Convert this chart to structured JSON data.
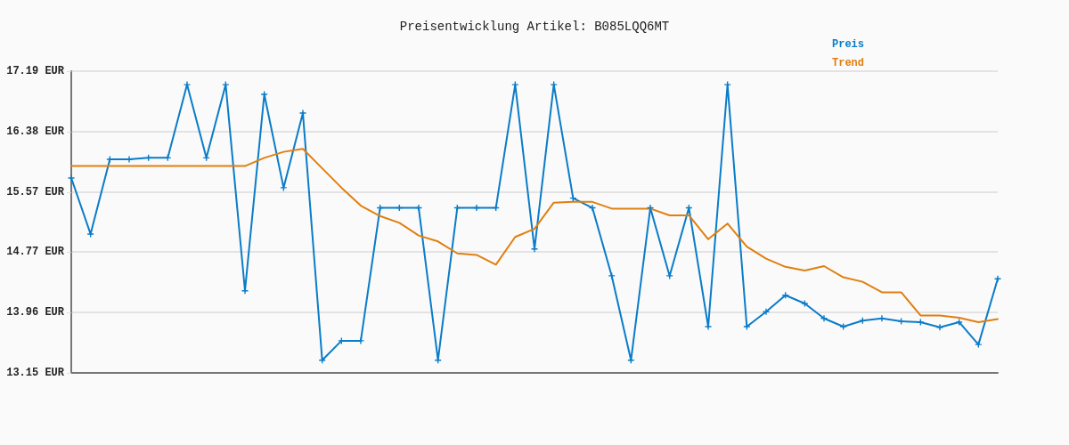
{
  "chart_data": {
    "type": "line",
    "title": "Preisentwicklung Artikel: B085LQQ6MT",
    "categories": [
      null,
      null,
      null,
      null,
      null,
      null,
      null,
      null,
      null,
      null,
      null,
      null,
      null,
      null,
      null,
      null,
      null,
      null,
      null,
      null,
      null,
      null,
      null,
      null,
      null,
      null,
      null,
      null,
      null,
      null,
      null,
      null,
      null,
      null,
      null,
      null,
      null,
      null,
      null,
      null,
      null,
      null,
      null,
      null,
      null,
      null,
      null,
      null,
      null
    ],
    "series": [
      {
        "name": "Preis",
        "color": "#0a7cc8",
        "marker": "cross",
        "values": [
          15.76,
          15.01,
          16.01,
          16.01,
          16.03,
          16.03,
          17.01,
          16.03,
          17.01,
          14.25,
          16.88,
          15.63,
          16.63,
          13.32,
          13.58,
          13.58,
          15.36,
          15.36,
          15.36,
          13.32,
          15.36,
          15.36,
          15.36,
          17.01,
          14.81,
          17.01,
          15.49,
          15.36,
          14.45,
          13.32,
          15.36,
          14.45,
          15.36,
          13.77,
          17.01,
          13.77,
          13.97,
          14.19,
          14.08,
          13.88,
          13.77,
          13.85,
          13.88,
          13.84,
          13.83,
          13.76,
          13.83,
          13.53,
          14.41
        ]
      },
      {
        "name": "Trend",
        "color": "#e07f10",
        "marker": "none",
        "values": [
          15.92,
          15.92,
          15.92,
          15.92,
          15.92,
          15.92,
          15.92,
          15.92,
          15.92,
          15.92,
          16.03,
          16.11,
          16.15,
          15.89,
          15.63,
          15.39,
          15.25,
          15.16,
          14.99,
          14.91,
          14.75,
          14.73,
          14.6,
          14.97,
          15.08,
          15.43,
          15.44,
          15.44,
          15.35,
          15.35,
          15.35,
          15.26,
          15.26,
          14.94,
          15.15,
          14.84,
          14.68,
          14.57,
          14.52,
          14.58,
          14.43,
          14.37,
          14.23,
          14.23,
          13.92,
          13.92,
          13.89,
          13.83,
          13.87
        ]
      }
    ],
    "ylim": [
      13.15,
      17.19
    ],
    "yticks": [
      {
        "value": 13.15,
        "label": "13.15 EUR"
      },
      {
        "value": 13.96,
        "label": "13.96 EUR"
      },
      {
        "value": 14.77,
        "label": "14.77 EUR"
      },
      {
        "value": 15.57,
        "label": "15.57 EUR"
      },
      {
        "value": 16.38,
        "label": "16.38 EUR"
      },
      {
        "value": 17.19,
        "label": "17.19 EUR"
      }
    ],
    "grid": "y",
    "legend": "top right",
    "tick_labels": "y",
    "line_style": "solid"
  }
}
